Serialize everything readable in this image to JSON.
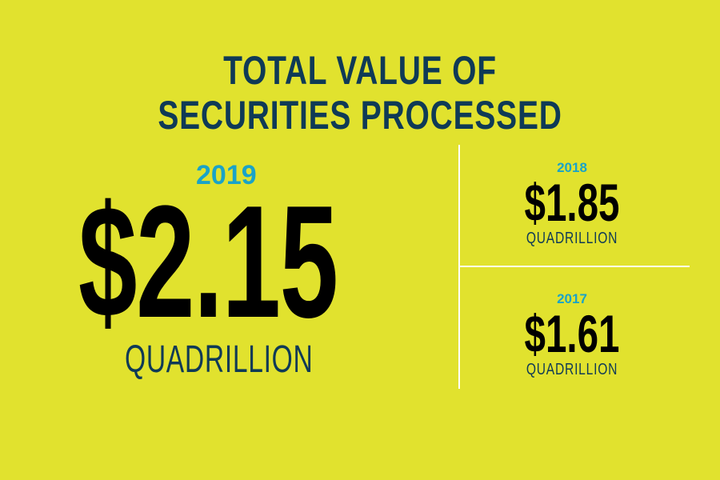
{
  "title": {
    "line1": "TOTAL VALUE OF",
    "line2": "SECURITIES PROCESSED"
  },
  "main_stat": {
    "year": "2019",
    "value": "$2.15",
    "unit": "QUADRILLION"
  },
  "side_stats": [
    {
      "year": "2018",
      "value": "$1.85",
      "unit": "QUADRILLION"
    },
    {
      "year": "2017",
      "value": "$1.61",
      "unit": "QUADRILLION"
    }
  ],
  "colors": {
    "background": "#e1e22e",
    "title": "#0f3a56",
    "year_accent": "#1aa3c7",
    "value": "#000000",
    "divider": "#ffffff"
  }
}
